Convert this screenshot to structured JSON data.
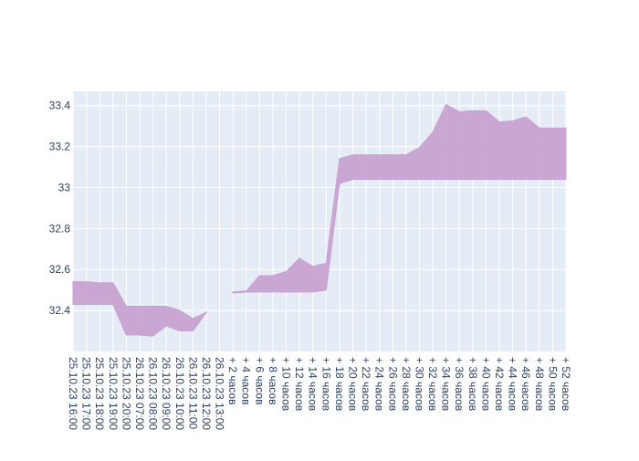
{
  "chart_data": {
    "type": "area",
    "title": "",
    "xlabel": "",
    "ylabel": "",
    "ylim": [
      32.2,
      33.47
    ],
    "grid": true,
    "legend": "none",
    "y_ticks": [
      32.4,
      32.6,
      32.8,
      33,
      33.2,
      33.4
    ],
    "y_tick_labels": [
      "32.4",
      "32.6",
      "32.8",
      "33",
      "33.2",
      "33.4"
    ],
    "categories": [
      "25.10.23 16:00",
      "25.10.23 17:00",
      "25.10.23 18:00",
      "25.10.23 19:00",
      "25.10.23 20:00",
      "26.10.23 07:00",
      "26.10.23 08:00",
      "26.10.23 09:00",
      "26.10.23 10:00",
      "26.10.23 11:00",
      "26.10.23 12:00",
      "26.10.23 13:00",
      "+ 2 часов",
      "+ 4 часов",
      "+ 6 часов",
      "+ 8 часов",
      "+ 10 часов",
      "+ 12 часов",
      "+ 14 часов",
      "+ 16 часов",
      "+ 18 часов",
      "+ 20 часов",
      "+ 22 часов",
      "+ 24 часов",
      "+ 26 часов",
      "+ 28 часов",
      "+ 30 часов",
      "+ 32 часов",
      "+ 34 часов",
      "+ 36 часов",
      "+ 38 часов",
      "+ 40 часов",
      "+ 42 часов",
      "+ 44 часов",
      "+ 46 часов",
      "+ 48 часов",
      "+ 50 часов",
      "+ 52 часов"
    ],
    "series": [
      {
        "role": "upper",
        "values": [
          32.54,
          32.54,
          32.535,
          32.535,
          32.42,
          32.42,
          32.42,
          32.42,
          32.4,
          32.36,
          32.39,
          null,
          32.49,
          32.495,
          32.57,
          32.57,
          32.59,
          32.655,
          32.615,
          32.63,
          33.14,
          33.16,
          33.16,
          33.16,
          33.16,
          33.16,
          33.195,
          33.27,
          33.405,
          33.37,
          33.375,
          33.375,
          33.32,
          33.325,
          33.345,
          33.29,
          33.29,
          33.29
        ]
      },
      {
        "role": "lower",
        "values": [
          32.43,
          32.43,
          32.43,
          32.43,
          32.28,
          32.28,
          32.275,
          32.325,
          32.3,
          32.3,
          32.39,
          null,
          32.485,
          32.49,
          32.49,
          32.49,
          32.49,
          32.49,
          32.49,
          32.5,
          33.02,
          33.04,
          33.04,
          33.04,
          33.04,
          33.04,
          33.04,
          33.04,
          33.04,
          33.04,
          33.04,
          33.04,
          33.04,
          33.04,
          33.04,
          33.04,
          33.04,
          33.04
        ]
      }
    ],
    "colors": {
      "fill": "#c8a3d1",
      "line": "#c9a3d3",
      "plot_bg": "#e5ecf6",
      "grid": "#ffffff",
      "text": "#2a3f5f"
    }
  }
}
